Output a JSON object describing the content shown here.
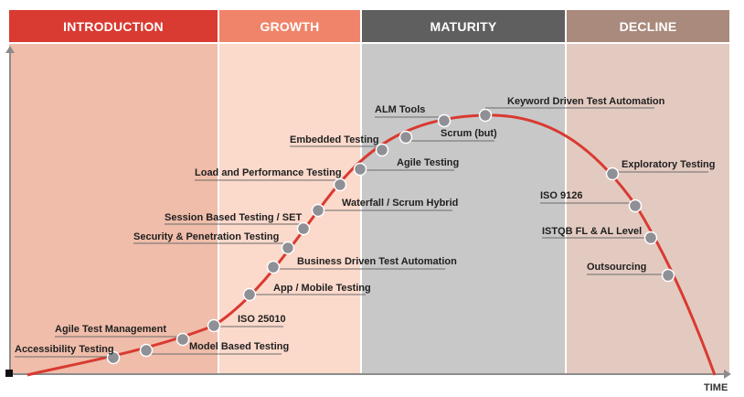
{
  "phases": [
    {
      "key": "introduction",
      "label": "INTRODUCTION",
      "header_color": "#d93a31",
      "bg_color": "#efbdaa"
    },
    {
      "key": "growth",
      "label": "GROWTH",
      "header_color": "#f0846a",
      "bg_color": "#fbd9cb"
    },
    {
      "key": "maturity",
      "label": "MATURITY",
      "header_color": "#5f5f5f",
      "bg_color": "#c8c8c9"
    },
    {
      "key": "decline",
      "label": "DECLINE",
      "header_color": "#a98a7c",
      "bg_color": "#e3cac0"
    }
  ],
  "axis": {
    "x_label": "TIME"
  },
  "curve_color": "#d93a31",
  "marker_color": "#8f9096",
  "items": [
    "Accessibility Testing",
    "Agile Test Management",
    "Model Based Testing",
    "ISO 25010",
    "App / Mobile Testing",
    "Business Driven Test Automation",
    "Security & Penetration Testing",
    "Session Based Testing / SET",
    "Waterfall / Scrum Hybrid",
    "Load and Performance Testing",
    "Agile Testing",
    "Embedded Testing",
    "Scrum (but)",
    "ALM Tools",
    "Keyword Driven Test Automation",
    "Exploratory Testing",
    "ISO 9126",
    "ISTQB FL & AL Level",
    "Outsourcing"
  ]
}
